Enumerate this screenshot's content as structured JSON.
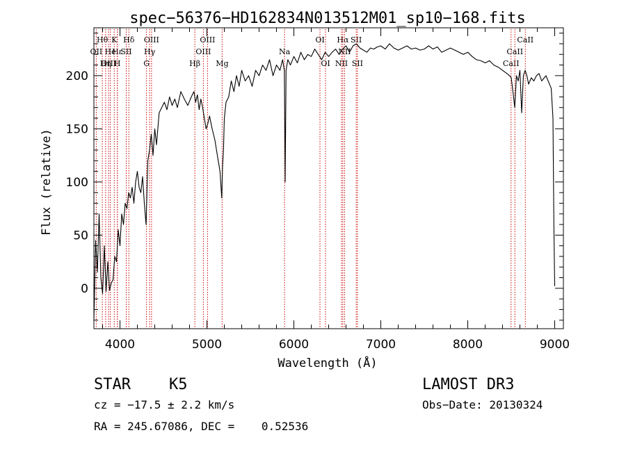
{
  "chart_data": {
    "type": "line",
    "title": "spec−56376−HD162834N013512M01_sp10−168.fits",
    "xlabel": "Wavelength (Å)",
    "ylabel": "Flux (relative)",
    "xlim": [
      3700,
      9100
    ],
    "ylim": [
      -38,
      245
    ],
    "xticks": [
      4000,
      5000,
      6000,
      7000,
      8000,
      9000
    ],
    "yticks": [
      0,
      50,
      100,
      150,
      200
    ],
    "series": [
      {
        "name": "flux",
        "x": [
          3700,
          3720,
          3740,
          3760,
          3780,
          3800,
          3820,
          3840,
          3860,
          3880,
          3900,
          3920,
          3940,
          3960,
          3980,
          4000,
          4020,
          4040,
          4060,
          4080,
          4100,
          4120,
          4140,
          4160,
          4180,
          4200,
          4220,
          4240,
          4260,
          4280,
          4300,
          4320,
          4340,
          4360,
          4380,
          4400,
          4420,
          4450,
          4480,
          4510,
          4540,
          4570,
          4600,
          4630,
          4660,
          4700,
          4740,
          4780,
          4820,
          4850,
          4870,
          4890,
          4910,
          4930,
          4950,
          4970,
          4990,
          5010,
          5030,
          5060,
          5090,
          5120,
          5150,
          5170,
          5180,
          5190,
          5200,
          5220,
          5250,
          5280,
          5310,
          5340,
          5370,
          5400,
          5440,
          5480,
          5520,
          5560,
          5600,
          5640,
          5680,
          5720,
          5760,
          5800,
          5840,
          5870,
          5880,
          5890,
          5895,
          5900,
          5910,
          5930,
          5960,
          6000,
          6040,
          6080,
          6120,
          6160,
          6200,
          6240,
          6280,
          6320,
          6360,
          6400,
          6440,
          6480,
          6520,
          6560,
          6600,
          6640,
          6680,
          6720,
          6760,
          6800,
          6840,
          6880,
          6920,
          6960,
          7000,
          7050,
          7100,
          7150,
          7200,
          7250,
          7300,
          7350,
          7400,
          7450,
          7500,
          7550,
          7600,
          7650,
          7700,
          7750,
          7800,
          7850,
          7900,
          7950,
          8000,
          8050,
          8100,
          8150,
          8200,
          8250,
          8300,
          8350,
          8400,
          8450,
          8480,
          8500,
          8520,
          8540,
          8560,
          8580,
          8600,
          8620,
          8640,
          8660,
          8680,
          8700,
          8730,
          8760,
          8790,
          8820,
          8850,
          8880,
          8900,
          8920,
          8940,
          8960,
          8980,
          8990,
          9000
        ],
        "values": [
          -30,
          45,
          15,
          70,
          10,
          -5,
          40,
          -3,
          25,
          -2,
          5,
          8,
          30,
          25,
          55,
          40,
          70,
          60,
          80,
          75,
          90,
          85,
          95,
          80,
          100,
          110,
          95,
          90,
          105,
          80,
          60,
          120,
          130,
          145,
          125,
          150,
          135,
          165,
          170,
          175,
          168,
          180,
          172,
          178,
          170,
          185,
          178,
          172,
          180,
          185,
          175,
          182,
          168,
          178,
          170,
          160,
          150,
          155,
          162,
          150,
          140,
          125,
          110,
          85,
          115,
          130,
          160,
          175,
          180,
          195,
          185,
          200,
          190,
          205,
          195,
          200,
          190,
          205,
          200,
          210,
          205,
          215,
          200,
          210,
          205,
          215,
          210,
          205,
          160,
          100,
          205,
          215,
          210,
          218,
          212,
          222,
          215,
          220,
          218,
          225,
          220,
          215,
          222,
          218,
          222,
          225,
          220,
          225,
          228,
          222,
          228,
          230,
          226,
          224,
          222,
          226,
          225,
          227,
          228,
          225,
          230,
          226,
          224,
          226,
          228,
          225,
          226,
          224,
          225,
          228,
          225,
          227,
          222,
          224,
          226,
          224,
          222,
          220,
          222,
          218,
          215,
          214,
          212,
          214,
          210,
          208,
          205,
          202,
          200,
          198,
          185,
          170,
          200,
          195,
          205,
          165,
          200,
          205,
          200,
          192,
          198,
          195,
          200,
          202,
          195,
          198,
          200,
          196,
          192,
          188,
          160,
          60,
          2
        ]
      }
    ],
    "line_markers": [
      {
        "label": "Hθ",
        "x": 3797,
        "row": 1
      },
      {
        "label": "OII",
        "x": 3727,
        "row": 2
      },
      {
        "label": "OIII",
        "x": 3869,
        "row": 3
      },
      {
        "label": "He",
        "x": 3889,
        "row": 2
      },
      {
        "label": "Hη",
        "x": 3835,
        "row": 3
      },
      {
        "label": "K",
        "x": 3934,
        "row": 1
      },
      {
        "label": "Hε",
        "x": 3970,
        "row": 2
      },
      {
        "label": "SII",
        "x": 4072,
        "row": 2
      },
      {
        "label": "H",
        "x": 3969,
        "row": 3
      },
      {
        "label": "Hδ",
        "x": 4102,
        "row": 1
      },
      {
        "label": "OIII",
        "x": 4363,
        "row": 1
      },
      {
        "label": "Hγ",
        "x": 4341,
        "row": 2
      },
      {
        "label": "G",
        "x": 4305,
        "row": 3
      },
      {
        "label": "Hβ",
        "x": 4861,
        "row": 3
      },
      {
        "label": "OIII",
        "x": 4959,
        "row": 2
      },
      {
        "label": "OIII",
        "x": 5007,
        "row": 1
      },
      {
        "label": "Mg",
        "x": 5175,
        "row": 3
      },
      {
        "label": "Na",
        "x": 5893,
        "row": 2
      },
      {
        "label": "OI",
        "x": 6300,
        "row": 1
      },
      {
        "label": "OI",
        "x": 6364,
        "row": 3
      },
      {
        "label": "Hα",
        "x": 6563,
        "row": 1
      },
      {
        "label": "NII",
        "x": 6548,
        "row": 3
      },
      {
        "label": "NII",
        "x": 6583,
        "row": 2
      },
      {
        "label": "SII",
        "x": 6717,
        "row": 1
      },
      {
        "label": "SII",
        "x": 6731,
        "row": 3
      },
      {
        "label": "CaII",
        "x": 8498,
        "row": 3
      },
      {
        "label": "CaII",
        "x": 8542,
        "row": 2
      },
      {
        "label": "CaII",
        "x": 8662,
        "row": 1
      }
    ]
  },
  "info": {
    "class": "STAR",
    "subclass": "K5",
    "survey": "LAMOST DR3",
    "redshift": "cz = −17.5 ± 2.2 km/s",
    "obs_date": "Obs−Date: 20130324",
    "coords": "RA = 245.67086, DEC =    0.52536"
  },
  "colors": {
    "line_marker": "#cc0000",
    "spectrum": "#000000"
  }
}
